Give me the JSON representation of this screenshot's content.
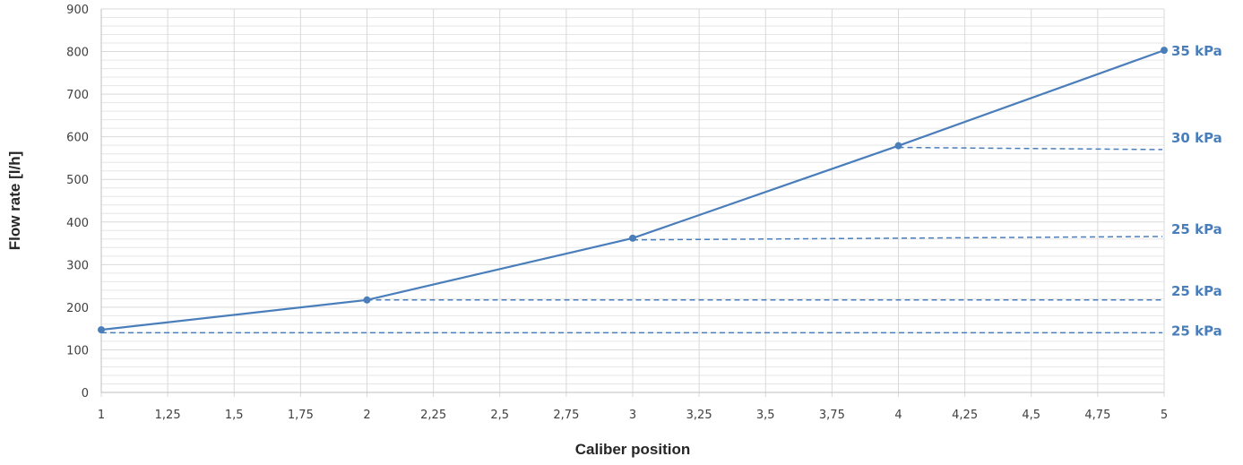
{
  "chart_data": {
    "type": "line",
    "title": "",
    "xlabel": "Caliber position",
    "ylabel": "Flow rate [l/h]",
    "xlim": [
      1,
      5
    ],
    "ylim": [
      0,
      900
    ],
    "x_ticks": [
      "1",
      "1,25",
      "1,5",
      "1,75",
      "2",
      "2,25",
      "2,5",
      "2,75",
      "3",
      "3,25",
      "3,5",
      "3,75",
      "4",
      "4,25",
      "4,5",
      "4,75",
      "5"
    ],
    "y_ticks": [
      "0",
      "100",
      "200",
      "300",
      "400",
      "500",
      "600",
      "700",
      "800",
      "900"
    ],
    "grid": true,
    "legend": "none",
    "colors": {
      "series": "#4a7ebb",
      "grid": "#d9d9d9",
      "label": "#4a7ebb"
    },
    "series": [
      {
        "style": "solid",
        "x": [
          1,
          2,
          3,
          4,
          5
        ],
        "y": [
          147,
          217,
          362,
          579,
          803
        ]
      }
    ],
    "pressure_lines": [
      {
        "label": "25 kPa",
        "x": [
          1,
          5
        ],
        "y": [
          140,
          140
        ]
      },
      {
        "label": "25 kPa",
        "x": [
          2,
          5
        ],
        "y": [
          217,
          217
        ]
      },
      {
        "label": "25 kPa",
        "x": [
          3,
          5
        ],
        "y": [
          358,
          366
        ]
      },
      {
        "label": "30 kPa",
        "x": [
          4,
          5
        ],
        "y": [
          575,
          570
        ]
      },
      {
        "label": "35 kPa",
        "x": [
          5,
          5
        ],
        "y": [
          803,
          803
        ]
      }
    ]
  }
}
